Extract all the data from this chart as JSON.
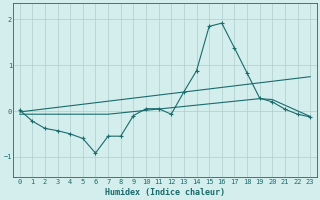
{
  "xlabel": "Humidex (Indice chaleur)",
  "background_color": "#d4eeee",
  "grid_color": "#b0cccc",
  "line_color": "#1a6b6b",
  "xlim": [
    -0.5,
    23.5
  ],
  "ylim": [
    -1.45,
    2.35
  ],
  "xticks": [
    0,
    1,
    2,
    3,
    4,
    5,
    6,
    7,
    8,
    9,
    10,
    11,
    12,
    13,
    14,
    15,
    16,
    17,
    18,
    19,
    20,
    21,
    22,
    23
  ],
  "yticks": [
    -1,
    0,
    1,
    2
  ],
  "line1_x": [
    0,
    1,
    2,
    3,
    4,
    5,
    6,
    7,
    8,
    9,
    10,
    11,
    12,
    13,
    14,
    15,
    16,
    17,
    18,
    19,
    20,
    21,
    22,
    23
  ],
  "line1_y": [
    0.02,
    -0.22,
    -0.38,
    -0.43,
    -0.5,
    -0.6,
    -0.92,
    -0.55,
    -0.55,
    -0.1,
    0.05,
    0.05,
    -0.07,
    0.42,
    0.88,
    1.85,
    1.92,
    1.38,
    0.83,
    0.28,
    0.2,
    0.04,
    -0.07,
    -0.13
  ],
  "line2_x": [
    0,
    23
  ],
  "line2_y": [
    -0.02,
    0.75
  ],
  "line3_x": [
    0,
    7,
    19,
    20,
    23
  ],
  "line3_y": [
    -0.07,
    -0.07,
    0.27,
    0.25,
    -0.12
  ]
}
